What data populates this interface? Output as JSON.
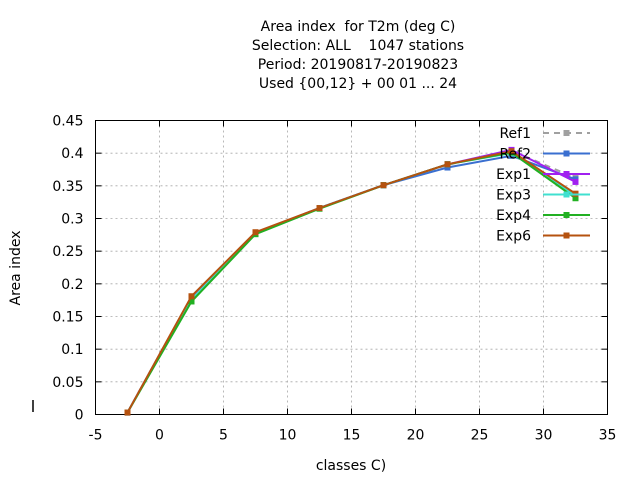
{
  "chart_data": {
    "type": "line",
    "title_lines": [
      "Area index  for T2m (deg C)",
      "Selection: ALL    1047 stations",
      "Period: 20190817-20190823",
      "Used {00,12} + 00 01 ... 24"
    ],
    "xlabel": "classes C)",
    "ylabel": "Area index",
    "xlim": [
      -5,
      35
    ],
    "ylim": [
      0,
      0.45
    ],
    "x_ticks": [
      "-5",
      "0",
      "5",
      "10",
      "15",
      "20",
      "25",
      "30",
      "35"
    ],
    "y_ticks": [
      "0",
      "0.05",
      "0.1",
      "0.15",
      "0.2",
      "0.25",
      "0.3",
      "0.35",
      "0.4",
      "0.45"
    ],
    "x_tick_values": [
      -5,
      0,
      5,
      10,
      15,
      20,
      25,
      30,
      35
    ],
    "y_tick_values": [
      0,
      0.05,
      0.1,
      0.15,
      0.2,
      0.25,
      0.3,
      0.35,
      0.4,
      0.45
    ],
    "grid": true,
    "legend_position": "top-right",
    "series": [
      {
        "name": "Ref1",
        "color": "#a0a0a0",
        "dashed": true,
        "x": [
          -2.5,
          2.5,
          7.5,
          12.5,
          17.5,
          22.5,
          27.5,
          32.5
        ],
        "y": [
          0.003,
          0.18,
          0.278,
          0.316,
          0.351,
          0.382,
          0.404,
          0.362
        ]
      },
      {
        "name": "Ref2",
        "color": "#3a6fd0",
        "dashed": false,
        "x": [
          -2.5,
          2.5,
          7.5,
          12.5,
          17.5,
          22.5,
          27.5,
          32.5
        ],
        "y": [
          0.003,
          0.18,
          0.278,
          0.316,
          0.351,
          0.378,
          0.396,
          0.36
        ]
      },
      {
        "name": "Exp1",
        "color": "#a020f0",
        "dashed": false,
        "x": [
          -2.5,
          2.5,
          7.5,
          12.5,
          17.5,
          22.5,
          27.5,
          32.5
        ],
        "y": [
          0.003,
          0.179,
          0.278,
          0.316,
          0.351,
          0.383,
          0.405,
          0.356
        ]
      },
      {
        "name": "Exp3",
        "color": "#40e0d0",
        "dashed": false,
        "x": [
          -2.5,
          2.5,
          7.5,
          12.5,
          17.5,
          22.5,
          27.5,
          32.5
        ],
        "y": [
          0.003,
          0.176,
          0.277,
          0.316,
          0.351,
          0.383,
          0.4,
          0.335
        ]
      },
      {
        "name": "Exp4",
        "color": "#22b022",
        "dashed": false,
        "x": [
          -2.5,
          2.5,
          7.5,
          12.5,
          17.5,
          22.5,
          27.5,
          32.5
        ],
        "y": [
          0.003,
          0.173,
          0.276,
          0.315,
          0.351,
          0.383,
          0.401,
          0.331
        ]
      },
      {
        "name": "Exp6",
        "color": "#b5520f",
        "dashed": false,
        "x": [
          -2.5,
          2.5,
          7.5,
          12.5,
          17.5,
          22.5,
          27.5,
          32.5
        ],
        "y": [
          0.003,
          0.181,
          0.279,
          0.316,
          0.351,
          0.383,
          0.403,
          0.338
        ]
      }
    ]
  }
}
